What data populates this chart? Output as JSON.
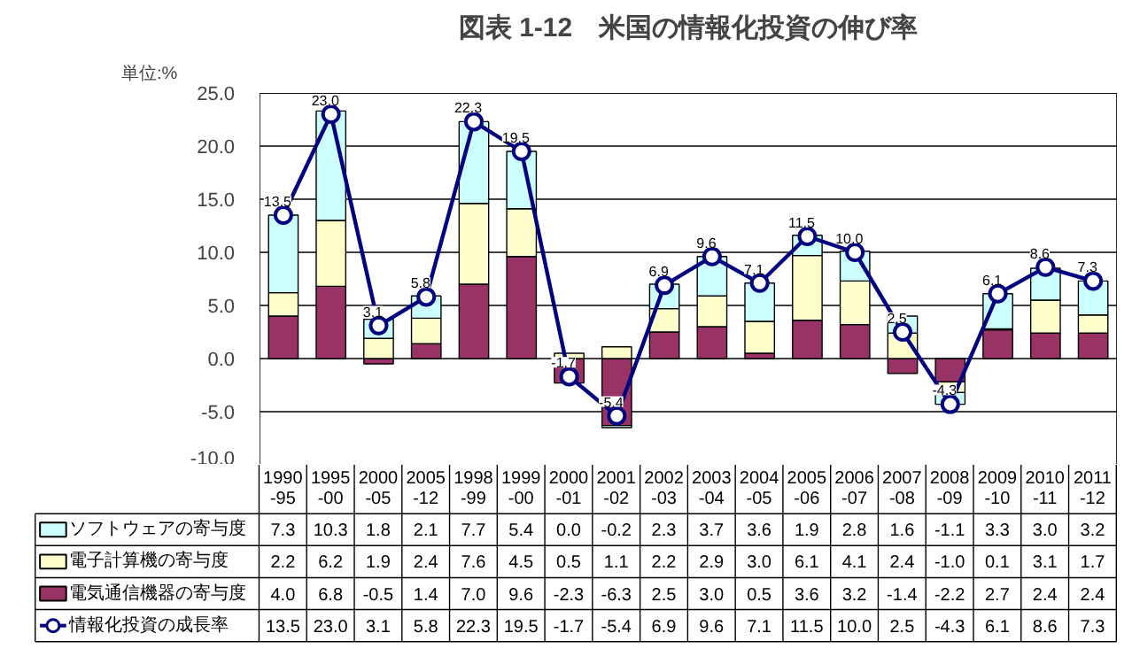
{
  "chart_data": {
    "type": "bar",
    "stacked": true,
    "title": "図表 1-12　米国の情報化投資の伸び率",
    "annotations": [
      "単位:%"
    ],
    "categories": [
      "1990-95",
      "1995-00",
      "2000-05",
      "2005-12",
      "1998-99",
      "1999-00",
      "2000-01",
      "2001-02",
      "2002-03",
      "2003-04",
      "2004-05",
      "2005-06",
      "2006-07",
      "2007-08",
      "2008-09",
      "2009-10",
      "2010-11",
      "2011-12"
    ],
    "series": [
      {
        "name": "電気通信機器の寄与度",
        "color": "#993366",
        "values": [
          4.0,
          6.8,
          -0.5,
          1.4,
          7.0,
          9.6,
          -2.3,
          -6.3,
          2.5,
          3.0,
          0.5,
          3.6,
          3.2,
          -1.4,
          -2.2,
          2.7,
          2.4,
          2.4
        ],
        "value_labels": [
          "4.0",
          "6.8",
          "-0.5",
          "1.4",
          "7.0",
          "9.6",
          "-2.3",
          "-6.3",
          "2.5",
          "3.0",
          "0.5",
          "3.6",
          "3.2",
          "-1.4",
          "-2.2",
          "2.7",
          "2.4",
          "2.4"
        ]
      },
      {
        "name": "電子計算機の寄与度",
        "color": "#ffffcc",
        "values": [
          2.2,
          6.2,
          1.9,
          2.4,
          7.6,
          4.5,
          0.5,
          1.1,
          2.2,
          2.9,
          3.0,
          6.1,
          4.1,
          2.4,
          -1.0,
          0.1,
          3.1,
          1.7
        ],
        "value_labels": [
          "2.2",
          "6.2",
          "1.9",
          "2.4",
          "7.6",
          "4.5",
          "0.5",
          "1.1",
          "2.2",
          "2.9",
          "3.0",
          "6.1",
          "4.1",
          "2.4",
          "-1.0",
          "0.1",
          "3.1",
          "1.7"
        ]
      },
      {
        "name": "ソフトウェアの寄与度",
        "color": "#ccffff",
        "values": [
          7.3,
          10.3,
          1.8,
          2.1,
          7.7,
          5.4,
          0.0,
          -0.2,
          2.3,
          3.7,
          3.6,
          1.9,
          2.8,
          1.6,
          -1.1,
          3.3,
          3.0,
          3.2
        ],
        "value_labels": [
          "7.3",
          "10.3",
          "1.8",
          "2.1",
          "7.7",
          "5.4",
          "0.0",
          "-0.2",
          "2.3",
          "3.7",
          "3.6",
          "1.9",
          "2.8",
          "1.6",
          "-1.1",
          "3.3",
          "3.0",
          "3.2"
        ]
      },
      {
        "name": "情報化投資の成長率",
        "type": "line",
        "color": "#000080",
        "marker": "circle",
        "values": [
          13.5,
          23.0,
          3.1,
          5.8,
          22.3,
          19.5,
          -1.7,
          -5.4,
          6.9,
          9.6,
          7.1,
          11.5,
          10.0,
          2.5,
          -4.3,
          6.1,
          8.6,
          7.3
        ],
        "value_labels": [
          "13.5",
          "23.0",
          "3.1",
          "5.8",
          "22.3",
          "19.5",
          "-1.7",
          "-5.4",
          "6.9",
          "9.6",
          "7.1",
          "11.5",
          "10.0",
          "2.5",
          "-4.3",
          "6.1",
          "8.6",
          "7.3"
        ]
      }
    ],
    "ylim": [
      -10,
      25
    ],
    "yticks": [
      {
        "value": -10,
        "label": "-10.0"
      },
      {
        "value": -5,
        "label": "-5.0"
      },
      {
        "value": 0,
        "label": "0.0"
      },
      {
        "value": 5,
        "label": "5.0"
      },
      {
        "value": 10,
        "label": "10.0"
      },
      {
        "value": 15,
        "label": "15.0"
      },
      {
        "value": 20,
        "label": "20.0"
      },
      {
        "value": 25,
        "label": "25.0"
      }
    ],
    "grid": "y",
    "legend": "bottom"
  }
}
